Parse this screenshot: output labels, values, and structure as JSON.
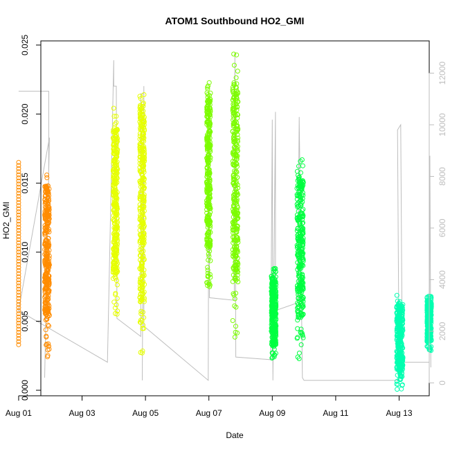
{
  "chart_data": {
    "type": "scatter",
    "title": "ATOM1 Southbound HO2_GMI",
    "xlabel": "Date",
    "ylabel": "HO2_GMI",
    "x_ticks": [
      "Aug 01",
      "Aug 03",
      "Aug 05",
      "Aug 07",
      "Aug 09",
      "Aug 11",
      "Aug 13"
    ],
    "y_ticks": [
      "0.000",
      "0.005",
      "0.010",
      "0.015",
      "0.020",
      "0.025"
    ],
    "y2_ticks": [
      "0",
      "2000",
      "4000",
      "6000",
      "8000",
      "10000",
      "12000"
    ],
    "xlim_days": [
      0.7,
      12.95
    ],
    "ylim": [
      -0.0004,
      0.0253
    ],
    "y2lim": [
      -500,
      13250
    ],
    "grid": false,
    "colors": {
      "orange": "#FF8C00",
      "yellow": "#E6FF00",
      "lime": "#7CFC00",
      "green": "#00FF40",
      "aqua": "#00FFB0",
      "altitude": "#bdbdbd"
    },
    "series": [
      {
        "color_key": "orange",
        "x": [
          0.0,
          0.0,
          0.0
        ],
        "y_range": [
          0.0033,
          0.0165
        ],
        "style": "column"
      },
      {
        "color_key": "orange",
        "x": [
          0.82,
          0.97
        ],
        "y_range": [
          0.0023,
          0.0162
        ],
        "style": "band"
      },
      {
        "color_key": "yellow",
        "x": [
          2.98,
          3.12
        ],
        "y_range": [
          0.0055,
          0.0205
        ],
        "style": "band"
      },
      {
        "color_key": "yellow",
        "x": [
          3.82,
          3.97
        ],
        "y_range": [
          0.0022,
          0.0229
        ],
        "style": "band"
      },
      {
        "color_key": "lime",
        "x": [
          5.93,
          6.05
        ],
        "y_range": [
          0.0073,
          0.0226
        ],
        "style": "band"
      },
      {
        "color_key": "lime",
        "x": [
          6.75,
          6.92
        ],
        "y_range": [
          0.0037,
          0.0244
        ],
        "style": "band"
      },
      {
        "color_key": "green",
        "x": [
          7.97,
          8.12
        ],
        "y_range": [
          0.0018,
          0.0089
        ],
        "style": "band"
      },
      {
        "color_key": "green",
        "x": [
          8.78,
          8.98
        ],
        "y_range": [
          0.0022,
          0.017
        ],
        "style": "band"
      },
      {
        "color_key": "aqua",
        "x": [
          11.92,
          12.12
        ],
        "y_range": [
          0.0,
          0.0069
        ],
        "style": "band"
      },
      {
        "color_key": "aqua",
        "x": [
          12.88,
          13.02
        ],
        "y_range": [
          0.0027,
          0.0069
        ],
        "style": "band"
      }
    ],
    "altitude_path": [
      [
        0.0,
        11300
      ],
      [
        0.95,
        11300
      ],
      [
        0.95,
        8000
      ],
      [
        0.82,
        200
      ],
      [
        0.97,
        9500
      ],
      [
        0.0,
        2800
      ],
      [
        2.8,
        800
      ],
      [
        3.0,
        12500
      ],
      [
        3.0,
        11500
      ],
      [
        3.08,
        11500
      ],
      [
        3.1,
        2500
      ],
      [
        3.85,
        1800
      ],
      [
        3.85,
        11200
      ],
      [
        3.95,
        11200
      ],
      [
        3.9,
        100
      ],
      [
        3.95,
        11500
      ],
      [
        3.95,
        2200
      ],
      [
        5.98,
        100
      ],
      [
        6.0,
        11000
      ],
      [
        6.02,
        3300
      ],
      [
        6.8,
        3200
      ],
      [
        6.82,
        12800
      ],
      [
        6.85,
        1000
      ],
      [
        7.95,
        900
      ],
      [
        8.0,
        10200
      ],
      [
        8.02,
        100
      ],
      [
        8.1,
        10500
      ],
      [
        8.1,
        2800
      ],
      [
        8.8,
        3100
      ],
      [
        8.85,
        10300
      ],
      [
        8.95,
        200
      ],
      [
        9.0,
        100
      ],
      [
        12.0,
        100
      ],
      [
        11.95,
        9800
      ],
      [
        12.05,
        10000
      ],
      [
        12.1,
        800
      ],
      [
        12.95,
        800
      ],
      [
        12.97,
        8800
      ],
      [
        13.0,
        600
      ]
    ]
  }
}
